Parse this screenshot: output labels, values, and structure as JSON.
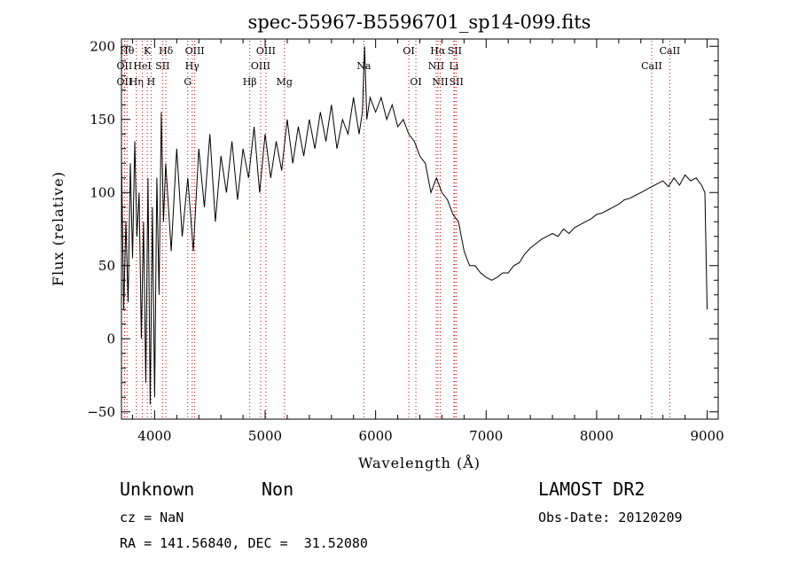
{
  "chart_data": {
    "type": "line",
    "title": "spec-55967-B5596701_sp14-099.fits",
    "xlabel": "Wavelength (Å)",
    "ylabel": "Flux (relative)",
    "xlim": [
      3700,
      9100
    ],
    "ylim": [
      -55,
      205
    ],
    "x_ticks": [
      4000,
      5000,
      6000,
      7000,
      8000,
      9000
    ],
    "y_ticks": [
      -50,
      0,
      50,
      100,
      150,
      200
    ],
    "x_minor_step": 200,
    "y_minor_step": 10,
    "grid": false,
    "series": [
      {
        "color": "#000000",
        "x": [
          3700,
          3720,
          3740,
          3760,
          3780,
          3800,
          3820,
          3840,
          3860,
          3880,
          3900,
          3920,
          3940,
          3960,
          3980,
          4000,
          4020,
          4040,
          4060,
          4080,
          4100,
          4150,
          4200,
          4250,
          4300,
          4350,
          4400,
          4450,
          4500,
          4550,
          4600,
          4650,
          4700,
          4750,
          4800,
          4850,
          4900,
          4950,
          5000,
          5050,
          5100,
          5150,
          5200,
          5250,
          5300,
          5350,
          5400,
          5450,
          5500,
          5550,
          5600,
          5650,
          5700,
          5750,
          5800,
          5850,
          5880,
          5900,
          5920,
          5950,
          6000,
          6050,
          6100,
          6150,
          6200,
          6250,
          6300,
          6350,
          6400,
          6450,
          6500,
          6550,
          6600,
          6650,
          6700,
          6750,
          6800,
          6850,
          6900,
          6950,
          7000,
          7050,
          7100,
          7150,
          7200,
          7250,
          7300,
          7350,
          7400,
          7450,
          7500,
          7550,
          7600,
          7650,
          7700,
          7750,
          7800,
          7850,
          7900,
          7950,
          8000,
          8050,
          8100,
          8150,
          8200,
          8250,
          8300,
          8350,
          8400,
          8450,
          8500,
          8550,
          8600,
          8650,
          8700,
          8750,
          8800,
          8850,
          8900,
          8950,
          8980,
          9000
        ],
        "y": [
          125,
          20,
          80,
          25,
          120,
          55,
          135,
          70,
          100,
          0,
          80,
          -30,
          110,
          -45,
          90,
          -40,
          110,
          30,
          155,
          80,
          120,
          60,
          130,
          70,
          110,
          60,
          130,
          90,
          140,
          80,
          125,
          100,
          135,
          95,
          130,
          110,
          145,
          100,
          140,
          110,
          135,
          115,
          150,
          120,
          145,
          125,
          150,
          130,
          155,
          135,
          160,
          130,
          150,
          140,
          165,
          140,
          155,
          200,
          150,
          165,
          155,
          165,
          150,
          160,
          145,
          150,
          140,
          135,
          125,
          120,
          100,
          110,
          100,
          95,
          85,
          80,
          60,
          50,
          50,
          45,
          42,
          40,
          42,
          45,
          45,
          50,
          52,
          58,
          62,
          65,
          68,
          70,
          72,
          70,
          75,
          72,
          76,
          78,
          80,
          82,
          85,
          86,
          88,
          90,
          92,
          95,
          96,
          98,
          100,
          102,
          104,
          106,
          108,
          104,
          110,
          105,
          112,
          108,
          110,
          105,
          100,
          20
        ]
      }
    ],
    "line_markers": [
      {
        "x": 3750,
        "label": "Hθ",
        "row": 0
      },
      {
        "x": 3727,
        "label": "OII",
        "row": 1
      },
      {
        "x": 3727,
        "label": "OII",
        "row": 2
      },
      {
        "x": 3835,
        "label": "Hη",
        "row": 2
      },
      {
        "x": 3889,
        "label": "HeI",
        "row": 1
      },
      {
        "x": 3934,
        "label": "K",
        "row": 0
      },
      {
        "x": 3968,
        "label": "H",
        "row": 2
      },
      {
        "x": 4072,
        "label": "SII",
        "row": 1
      },
      {
        "x": 4102,
        "label": "Hδ",
        "row": 0
      },
      {
        "x": 4300,
        "label": "G",
        "row": 2
      },
      {
        "x": 4340,
        "label": "Hγ",
        "row": 1
      },
      {
        "x": 4363,
        "label": "OIII",
        "row": 0
      },
      {
        "x": 4861,
        "label": "Hβ",
        "row": 2
      },
      {
        "x": 4959,
        "label": "OIII",
        "row": 1
      },
      {
        "x": 5007,
        "label": "OIII",
        "row": 0
      },
      {
        "x": 5175,
        "label": "Mg",
        "row": 2
      },
      {
        "x": 5893,
        "label": "Na",
        "row": 1
      },
      {
        "x": 6300,
        "label": "OI",
        "row": 0
      },
      {
        "x": 6364,
        "label": "OI",
        "row": 2
      },
      {
        "x": 6548,
        "label": "NII",
        "row": 1
      },
      {
        "x": 6563,
        "label": "Hα",
        "row": 0
      },
      {
        "x": 6584,
        "label": "NII",
        "row": 2
      },
      {
        "x": 6708,
        "label": "Li",
        "row": 1
      },
      {
        "x": 6716,
        "label": "SII",
        "row": 0
      },
      {
        "x": 6731,
        "label": "SII",
        "row": 2
      },
      {
        "x": 8498,
        "label": "CaII",
        "row": 1
      },
      {
        "x": 8662,
        "label": "CaII",
        "row": 0
      }
    ]
  },
  "footer": {
    "object_class": "Unknown",
    "subclass": "Non",
    "survey": "LAMOST DR2",
    "redshift_text": "cz = NaN",
    "obs_date_text": "Obs-Date: 20120209",
    "coords_text": "RA = 141.56840, DEC =  31.52080"
  }
}
